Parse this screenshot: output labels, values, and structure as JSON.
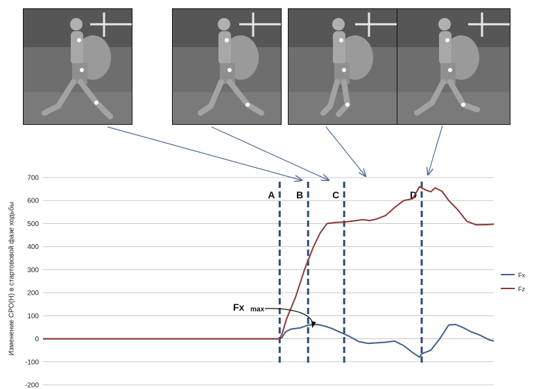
{
  "figure": {
    "photos": [
      {
        "name": "gait-photo-a"
      },
      {
        "name": "gait-photo-b"
      },
      {
        "name": "gait-photo-c"
      },
      {
        "name": "gait-photo-d"
      }
    ]
  },
  "chart_data": {
    "type": "line",
    "title": "",
    "xlabel": "",
    "ylabel": "Изменение СРО(Н) в стартововой фазе ходьбы",
    "ylim": [
      -200,
      700
    ],
    "yticks": [
      -200,
      -100,
      0,
      100,
      200,
      300,
      400,
      500,
      600,
      700
    ],
    "xlim": [
      0,
      100
    ],
    "grid": true,
    "legend_position": "right",
    "series": [
      {
        "name": "Fx",
        "color": "#3f5f8d",
        "points": [
          [
            0,
            0
          ],
          [
            52.5,
            0
          ],
          [
            53,
            5
          ],
          [
            53.8,
            30
          ],
          [
            55,
            42
          ],
          [
            57,
            47
          ],
          [
            59,
            60
          ],
          [
            61,
            62
          ],
          [
            62.5,
            55
          ],
          [
            64,
            45
          ],
          [
            66,
            28
          ],
          [
            68,
            10
          ],
          [
            70,
            -12
          ],
          [
            72,
            -20
          ],
          [
            74,
            -18
          ],
          [
            76,
            -15
          ],
          [
            78,
            -10
          ],
          [
            80,
            -30
          ],
          [
            82,
            -60
          ],
          [
            83.5,
            -80
          ],
          [
            84,
            -65
          ],
          [
            86,
            -50
          ],
          [
            88,
            0
          ],
          [
            90,
            60
          ],
          [
            91.5,
            62
          ],
          [
            93,
            50
          ],
          [
            95,
            30
          ],
          [
            97,
            15
          ],
          [
            99,
            -5
          ],
          [
            100,
            -10
          ]
        ]
      },
      {
        "name": "Fz",
        "color": "#8b3a35",
        "points": [
          [
            0,
            0
          ],
          [
            52.5,
            0
          ],
          [
            53,
            20
          ],
          [
            54,
            85
          ],
          [
            56,
            180
          ],
          [
            58,
            300
          ],
          [
            60,
            400
          ],
          [
            61.5,
            460
          ],
          [
            63,
            500
          ],
          [
            65,
            505
          ],
          [
            67,
            507
          ],
          [
            69,
            512
          ],
          [
            71,
            517
          ],
          [
            72.5,
            513
          ],
          [
            74,
            520
          ],
          [
            76,
            535
          ],
          [
            78,
            570
          ],
          [
            80,
            600
          ],
          [
            82,
            608
          ],
          [
            83.5,
            660
          ],
          [
            85,
            645
          ],
          [
            86,
            638
          ],
          [
            87,
            655
          ],
          [
            88.5,
            640
          ],
          [
            90,
            600
          ],
          [
            92,
            560
          ],
          [
            94,
            510
          ],
          [
            96,
            495
          ],
          [
            98,
            495
          ],
          [
            100,
            497
          ]
        ]
      }
    ],
    "markers": [
      {
        "label": "A",
        "x": 52.5
      },
      {
        "label": "B",
        "x": 58.8
      },
      {
        "label": "C",
        "x": 66.8
      },
      {
        "label": "D",
        "x": 84.0
      }
    ],
    "annotation": {
      "text": "Fx",
      "subscript": "max",
      "x": 61,
      "y": 62
    }
  }
}
